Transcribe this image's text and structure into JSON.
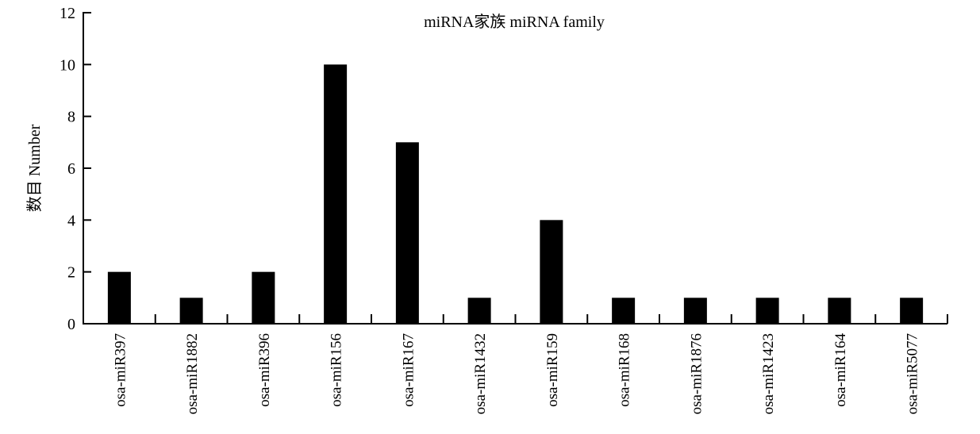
{
  "chart_data": {
    "type": "bar",
    "title": "miRNA家族 miRNA family",
    "ylabel": "数目 Number",
    "xlabel": "",
    "ylim": [
      0,
      12
    ],
    "yticks": [
      0,
      2,
      4,
      6,
      8,
      10,
      12
    ],
    "categories": [
      "osa-miR397",
      "osa-miR1882",
      "osa-miR396",
      "osa-miR156",
      "osa-miR167",
      "osa-miR1432",
      "osa-miR159",
      "osa-miR168",
      "osa-miR1876",
      "osa-miR1423",
      "osa-miR164",
      "osa-miR5077"
    ],
    "values": [
      2,
      1,
      2,
      10,
      7,
      1,
      4,
      1,
      1,
      1,
      1,
      1
    ],
    "bar_color": "#000000",
    "grid": false,
    "legend": "none"
  }
}
